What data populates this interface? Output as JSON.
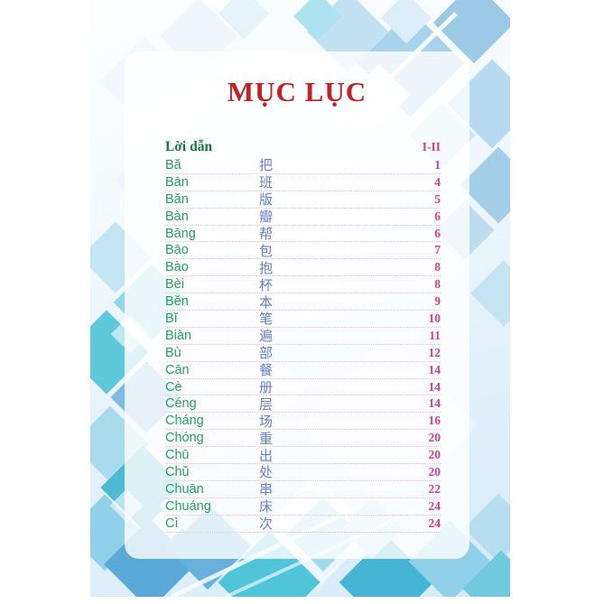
{
  "page": {
    "title": "MỤC LỤC"
  },
  "toc": {
    "header": {
      "label": "Lời dẫn",
      "pages": "I-II"
    },
    "entries": [
      {
        "pinyin": "Bă",
        "hanzi": "把",
        "page": "1"
      },
      {
        "pinyin": "Bān",
        "hanzi": "班",
        "page": "4"
      },
      {
        "pinyin": "Băn",
        "hanzi": "版",
        "page": "5"
      },
      {
        "pinyin": "Bàn",
        "hanzi": "瓣",
        "page": "6"
      },
      {
        "pinyin": "Bāng",
        "hanzi": "帮",
        "page": "6"
      },
      {
        "pinyin": "Bāo",
        "hanzi": "包",
        "page": "7"
      },
      {
        "pinyin": "Bào",
        "hanzi": "抱",
        "page": "8"
      },
      {
        "pinyin": "Bèi",
        "hanzi": "杯",
        "page": "8"
      },
      {
        "pinyin": "Bĕn",
        "hanzi": "本",
        "page": "9"
      },
      {
        "pinyin": "Bĭ",
        "hanzi": "笔",
        "page": "10"
      },
      {
        "pinyin": "Biàn",
        "hanzi": "遍",
        "page": "11"
      },
      {
        "pinyin": "Bù",
        "hanzi": "部",
        "page": "12"
      },
      {
        "pinyin": "Cān",
        "hanzi": "餐",
        "page": "14"
      },
      {
        "pinyin": "Cè",
        "hanzi": "册",
        "page": "14"
      },
      {
        "pinyin": "Céng",
        "hanzi": "层",
        "page": "14"
      },
      {
        "pinyin": "Cháng",
        "hanzi": "场",
        "page": "16"
      },
      {
        "pinyin": "Chóng",
        "hanzi": "重",
        "page": "20"
      },
      {
        "pinyin": "Chū",
        "hanzi": "出",
        "page": "20"
      },
      {
        "pinyin": "Chŭ",
        "hanzi": "处",
        "page": "20"
      },
      {
        "pinyin": "Chuān",
        "hanzi": "串",
        "page": "22"
      },
      {
        "pinyin": "Chuáng",
        "hanzi": "床",
        "page": "24"
      },
      {
        "pinyin": "Cì",
        "hanzi": "次",
        "page": "24"
      }
    ]
  },
  "colors": {
    "title_red": "#c42127",
    "header_green": "#15793f",
    "pinyin_green": "#2aa05c",
    "hanzi_blue": "#6780c8",
    "page_pink": "#d6408c",
    "leader_pink": "#eec3d0",
    "pattern_blue": "#a9d2ec",
    "pattern_cyan": "#50c4d9"
  }
}
